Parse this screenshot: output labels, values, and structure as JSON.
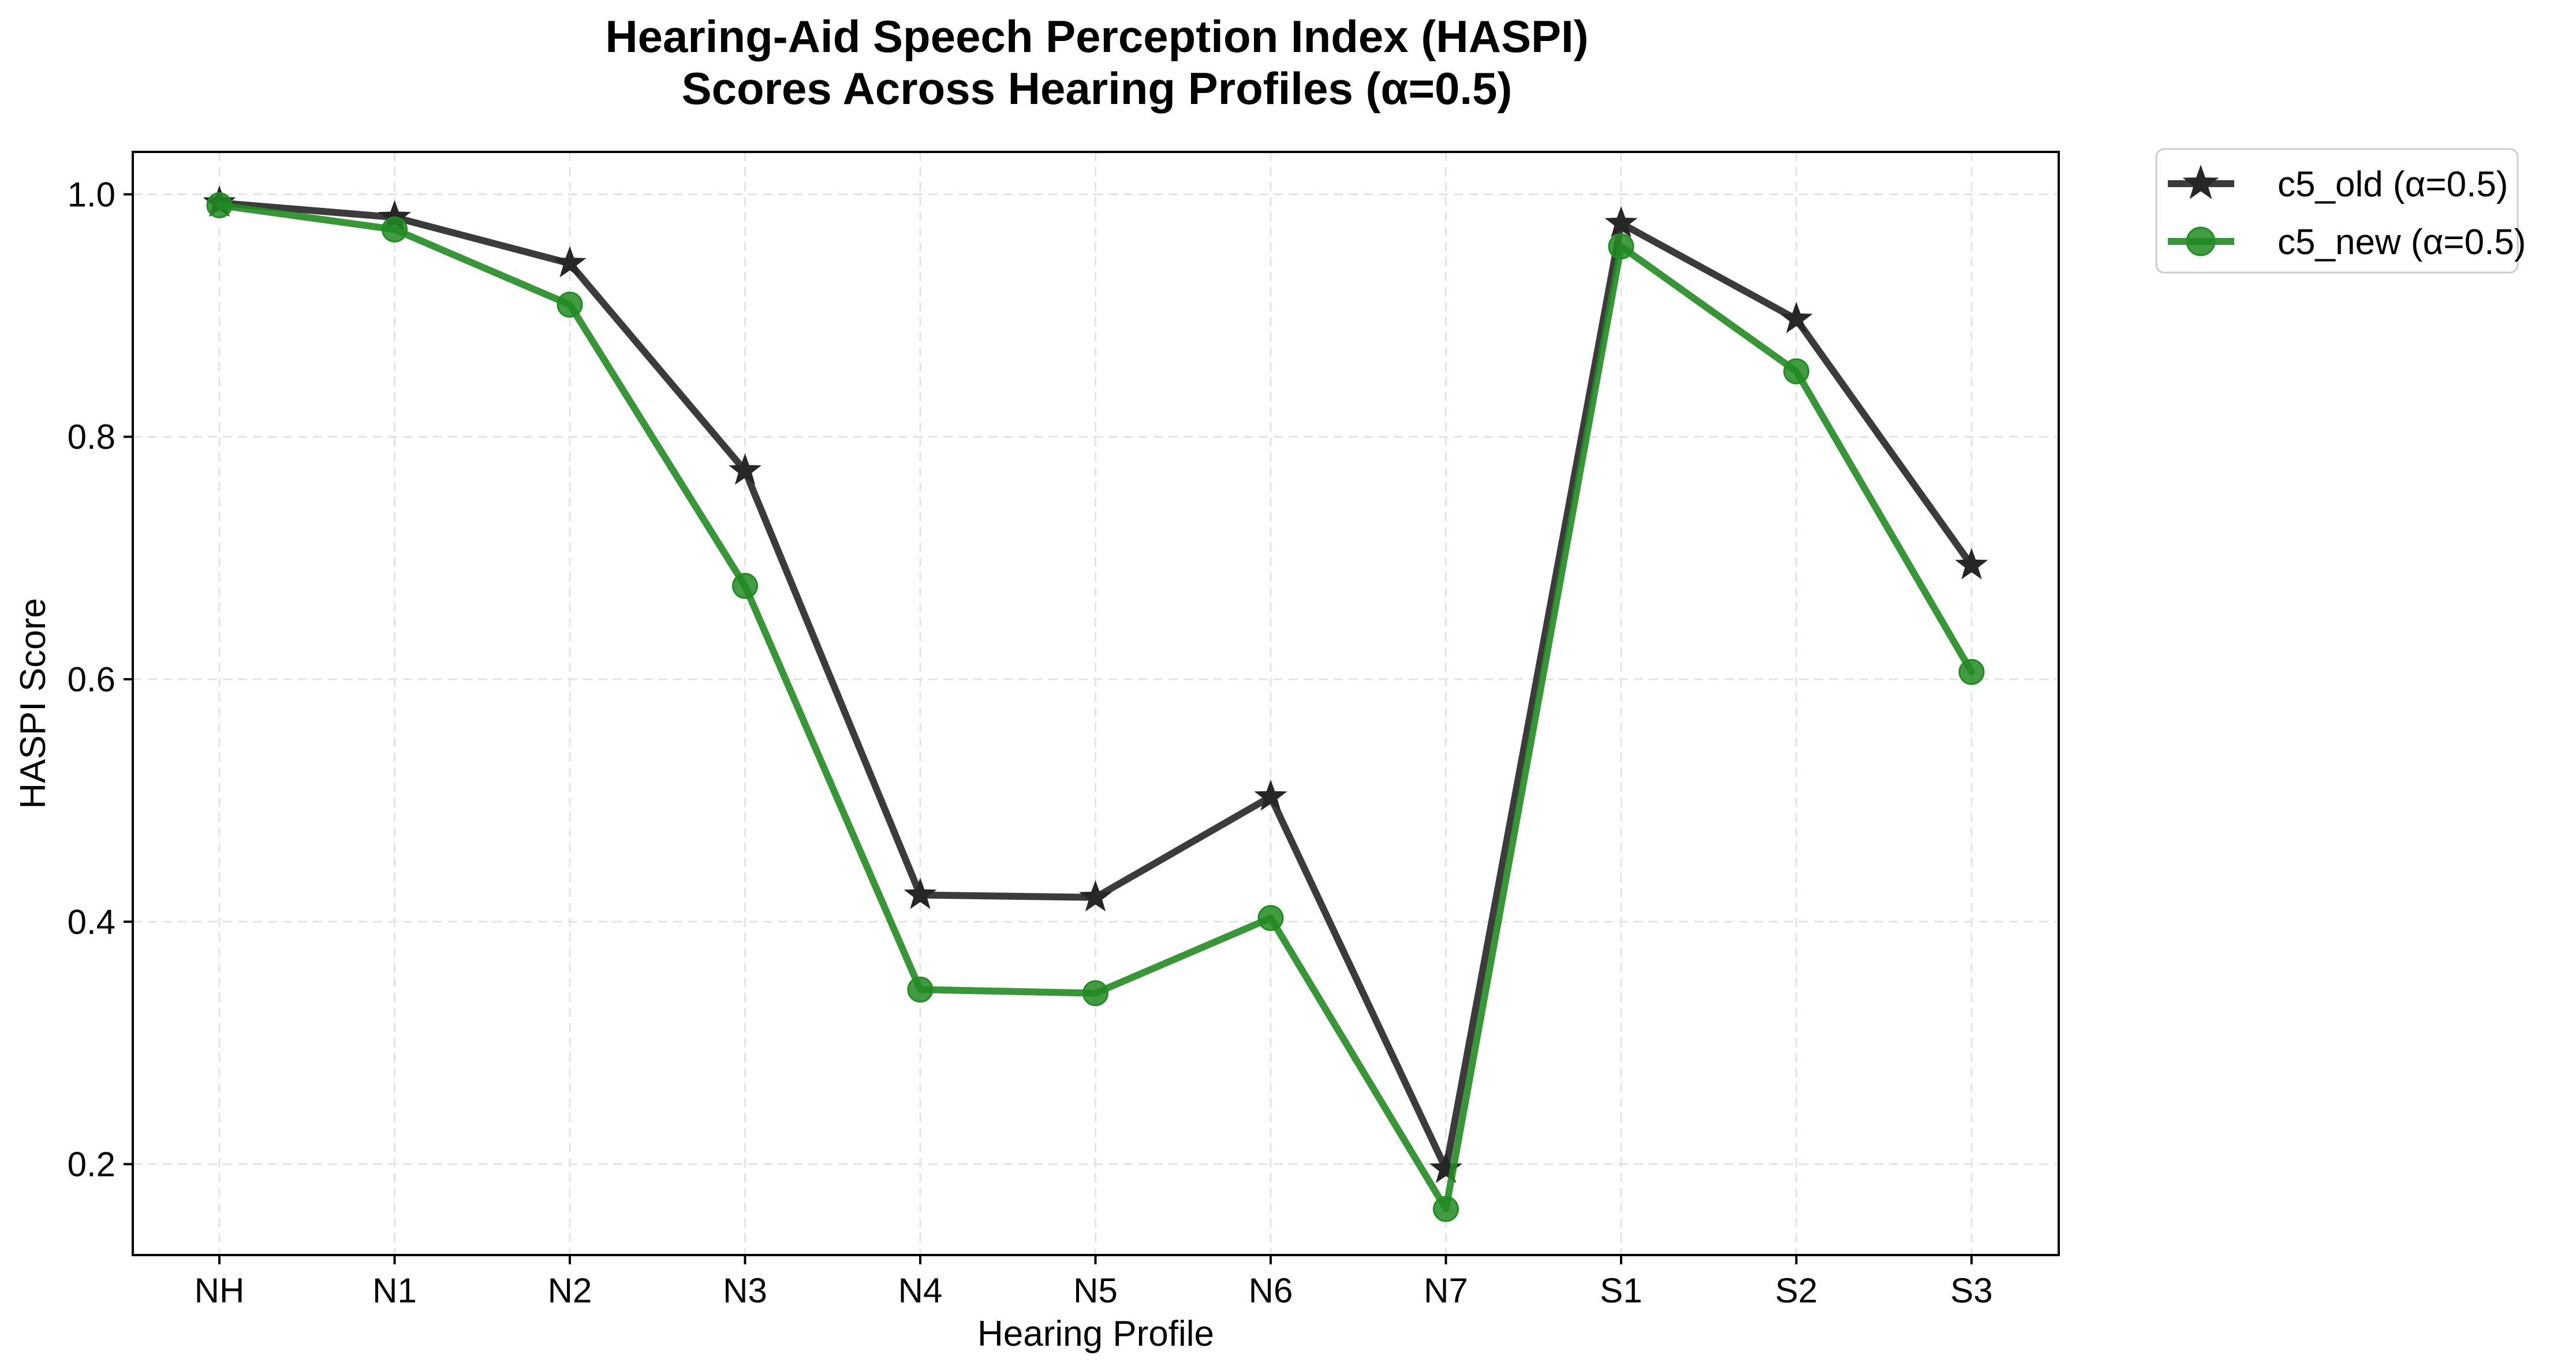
{
  "chart_data": {
    "type": "line",
    "title_lines": [
      "Hearing-Aid Speech Perception Index (HASPI)",
      "Scores Across Hearing Profiles (α=0.5)"
    ],
    "xlabel": "Hearing Profile",
    "ylabel": "HASPI Score",
    "categories": [
      "NH",
      "N1",
      "N2",
      "N3",
      "N4",
      "N5",
      "N6",
      "N7",
      "S1",
      "S2",
      "S3"
    ],
    "ylim": [
      0.125,
      1.035
    ],
    "yticks": [
      0.2,
      0.4,
      0.6,
      0.8,
      1.0
    ],
    "ytick_labels": [
      "0.2",
      "0.4",
      "0.6",
      "0.8",
      "1.0"
    ],
    "grid": true,
    "legend_position": "outside-top-right",
    "series": [
      {
        "name": "c5_old (α=0.5)",
        "values": [
          0.993,
          0.981,
          0.943,
          0.772,
          0.422,
          0.42,
          0.503,
          0.196,
          0.976,
          0.897,
          0.694
        ],
        "color": "#262626",
        "marker": "star-icon"
      },
      {
        "name": "c5_new (α=0.5)",
        "values": [
          0.991,
          0.971,
          0.909,
          0.677,
          0.344,
          0.341,
          0.403,
          0.163,
          0.957,
          0.854,
          0.606
        ],
        "color": "#228b22",
        "marker": "circle-icon"
      }
    ]
  }
}
